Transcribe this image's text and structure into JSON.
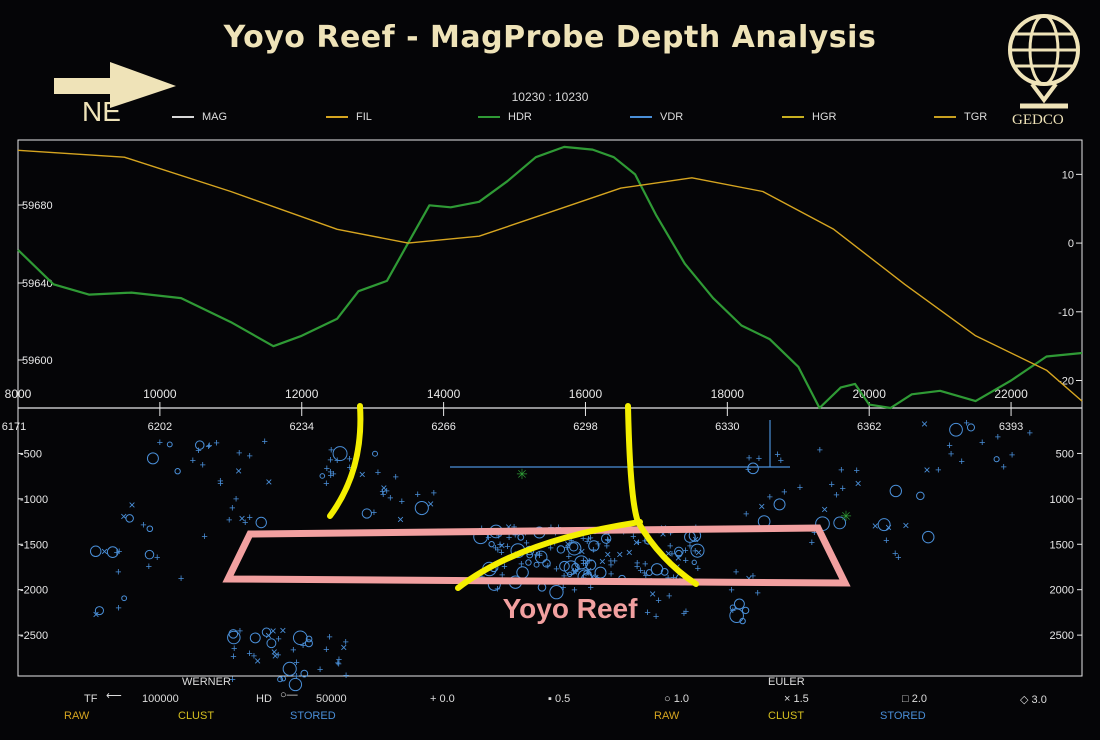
{
  "title": "Yoyo Reef - MagProbe Depth Analysis",
  "section_label": "10230 : 10230",
  "direction_label": "NE",
  "logo_text": "GEDCO",
  "colors": {
    "background": "#050507",
    "mag": "#d8d8d8",
    "fil": "#d6a520",
    "hdr": "#2f9a35",
    "vdr": "#4a8fd8",
    "hgr": "#c8b020",
    "tgr": "#c8a020",
    "yellow_marks": "#f4ef00",
    "reef_box": "#f2a0a0",
    "axis": "#e8e8e8"
  },
  "legend": [
    {
      "name": "MAG",
      "color": "#d8d8d8"
    },
    {
      "name": "FIL",
      "color": "#d6a520"
    },
    {
      "name": "HDR",
      "color": "#2f9a35"
    },
    {
      "name": "VDR",
      "color": "#4a8fd8"
    },
    {
      "name": "HGR",
      "color": "#c8b020"
    },
    {
      "name": "TGR",
      "color": "#c8a020"
    }
  ],
  "annotation": "Yoyo Reef",
  "bottom_legend": {
    "werner": "WERNER",
    "euler": "EULER",
    "tf": "TF",
    "tf_value": "100000",
    "hd": "HD",
    "hd_value": "50000",
    "sizes": [
      "0.0",
      "0.5",
      "1.0",
      "1.5",
      "2.0",
      "3.0"
    ],
    "raw": "RAW",
    "clust": "CLUST",
    "stored": "STORED"
  },
  "chart_data": {
    "type": "line",
    "x_axis": {
      "ticks": [
        8000,
        10000,
        12000,
        14000,
        16000,
        18000,
        20000,
        22000
      ],
      "labels": [
        "8000",
        "10000",
        "12000",
        "14000",
        "16000",
        "18000",
        "20000",
        "22000"
      ],
      "range": [
        8000,
        23000
      ]
    },
    "station_ticks": [
      "6171",
      "6202",
      "6234",
      "6266",
      "6298",
      "6330",
      "6362",
      "6393"
    ],
    "y_left": {
      "ticks": [
        59680,
        59640,
        59600
      ],
      "labels": [
        "59680",
        "59640",
        "59600"
      ]
    },
    "y_right": {
      "ticks": [
        10,
        0,
        -10,
        -20
      ],
      "labels": [
        "10",
        "0",
        "-10",
        "-20"
      ],
      "range": [
        -24,
        15
      ]
    },
    "depth_axis": {
      "ticks": [
        500,
        1000,
        1500,
        2000,
        2500
      ],
      "labels_left": [
        "-500",
        "-1000",
        "-1500",
        "-2000",
        "-2500"
      ],
      "labels_right": [
        "500",
        "1000",
        "1500",
        "2000",
        "2500"
      ],
      "range": [
        0,
        2950
      ]
    },
    "series": [
      {
        "name": "HDR",
        "x": [
          8000,
          8500,
          9000,
          9600,
          10300,
          11000,
          11600,
          12000,
          12500,
          12800,
          13200,
          13500,
          13800,
          14100,
          14500,
          14900,
          15300,
          15700,
          16100,
          16400,
          16700,
          17000,
          17400,
          17800,
          18200,
          18600,
          19000,
          19300,
          19600,
          19800,
          20000,
          20300,
          20600,
          21000,
          21500,
          22000,
          22500,
          23000
        ],
        "y": [
          -1,
          -6,
          -7.5,
          -7.2,
          -8,
          -11.5,
          -15,
          -13.5,
          -11,
          -7,
          -5.5,
          0,
          5.5,
          5.2,
          6,
          9,
          12.5,
          14,
          13.6,
          12.5,
          10,
          4,
          -3,
          -8,
          -12,
          -14,
          -18,
          -24,
          -21,
          -20.5,
          -23.5,
          -24,
          -22,
          -21.5,
          -23,
          -20,
          -16.5,
          -16
        ]
      },
      {
        "name": "FIL",
        "x": [
          8000,
          9500,
          11000,
          12500,
          13500,
          14500,
          15500,
          16500,
          17500,
          18500,
          19500,
          20500,
          21500,
          22500,
          23000
        ],
        "y": [
          13.5,
          12.5,
          7.5,
          2,
          0,
          1,
          4.5,
          8,
          9.5,
          7.5,
          2,
          -6,
          -13.5,
          -18.5,
          -23
        ]
      }
    ]
  }
}
